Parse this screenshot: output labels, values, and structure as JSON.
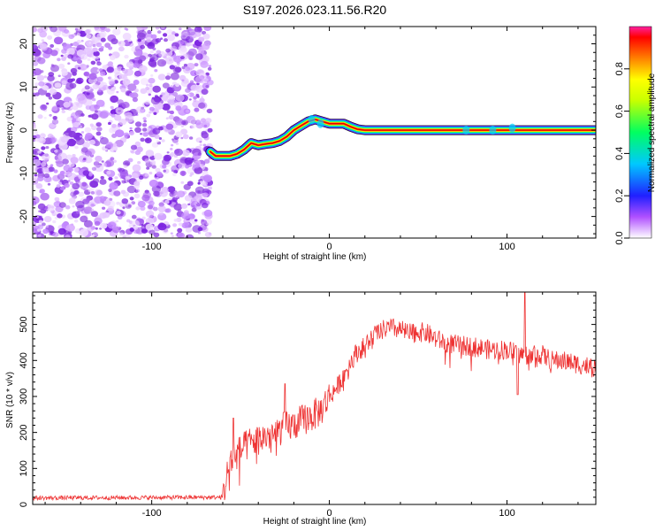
{
  "title": "S197.2026.023.11.56.R20",
  "chart_data": [
    {
      "type": "heatmap",
      "name": "spectrogram",
      "xlabel": "Height of straight line (km)",
      "ylabel": "Frequency (Hz)",
      "xlim": [
        -167,
        150
      ],
      "ylim": [
        -25,
        24
      ],
      "xticks": [
        -100,
        0,
        100
      ],
      "yticks": [
        -20,
        -10,
        0,
        10,
        20
      ],
      "noise_region_x": [
        -167,
        -67
      ],
      "signal_track": {
        "x": [
          -67,
          -64,
          -60,
          -56,
          -52,
          -48,
          -44,
          -40,
          -36,
          -32,
          -28,
          -24,
          -20,
          -16,
          -12,
          -8,
          -4,
          0,
          4,
          8,
          12,
          16,
          20,
          150
        ],
        "y": [
          -5,
          -6,
          -6,
          -6,
          -5.5,
          -4.5,
          -3,
          -3.5,
          -3.2,
          -3,
          -2.5,
          -1.5,
          0,
          1,
          2,
          2.5,
          2,
          1.5,
          1.5,
          1.5,
          0.8,
          0.2,
          0,
          0
        ]
      },
      "colorbar": {
        "label": "Normalized spectral amplitude",
        "range": [
          0,
          1
        ],
        "ticks": [
          "0.0",
          "0.2",
          "0.4",
          "0.6",
          "0.8"
        ]
      }
    },
    {
      "type": "line",
      "name": "snr",
      "xlabel": "Height of straight line (km)",
      "ylabel": "SNR (10 * v/v)",
      "xlim": [
        -167,
        150
      ],
      "ylim": [
        0,
        590
      ],
      "xticks": [
        -100,
        0,
        100
      ],
      "yticks": [
        0,
        100,
        200,
        300,
        400,
        500
      ],
      "color": "#ee3333",
      "series_anchors": {
        "x": [
          -167,
          -60,
          -56,
          -50,
          -45,
          -40,
          -35,
          -30,
          -25,
          -20,
          -15,
          -10,
          -5,
          0,
          5,
          10,
          15,
          20,
          25,
          30,
          35,
          40,
          45,
          50,
          55,
          60,
          65,
          70,
          75,
          80,
          85,
          90,
          95,
          100,
          105,
          110,
          115,
          120,
          125,
          130,
          135,
          140,
          145,
          150
        ],
        "y": [
          18,
          20,
          120,
          150,
          170,
          180,
          190,
          200,
          215,
          220,
          235,
          245,
          260,
          300,
          330,
          380,
          420,
          440,
          470,
          485,
          490,
          485,
          475,
          480,
          475,
          460,
          450,
          445,
          440,
          440,
          435,
          430,
          430,
          430,
          420,
          415,
          420,
          415,
          400,
          400,
          395,
          390,
          385,
          380
        ]
      },
      "spikes": [
        {
          "x": 110,
          "y": 590
        },
        {
          "x": 106,
          "y": 305
        },
        {
          "x": -54,
          "y": 240
        },
        {
          "x": -25,
          "y": 335
        }
      ]
    }
  ]
}
